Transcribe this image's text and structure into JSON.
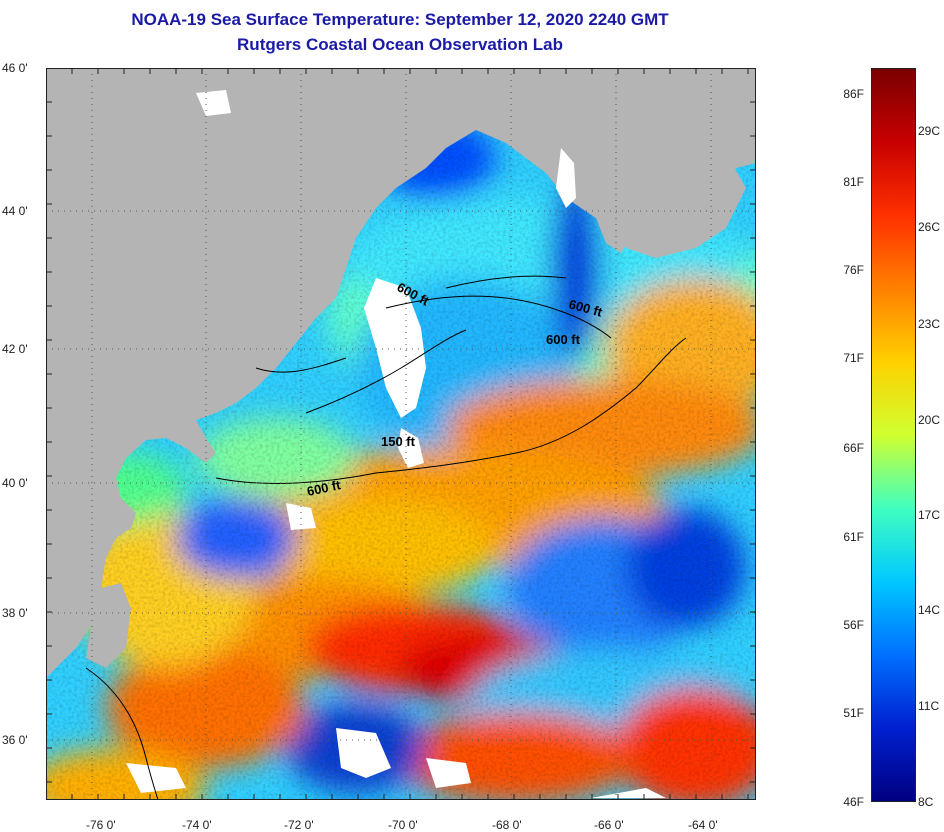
{
  "header": {
    "title_line1": "NOAA-19 Sea Surface Temperature:  September 12, 2020 2240 GMT",
    "title_line2": "Rutgers Coastal Ocean Observation Lab"
  },
  "map": {
    "land_color": "#b4b4b4",
    "lat_labels": [
      "46 0'",
      "44 0'",
      "42 0'",
      "40 0'",
      "38 0'",
      "36 0'"
    ],
    "lon_labels": [
      "-76 0'",
      "-74 0'",
      "-72 0'",
      "-70 0'",
      "-68 0'",
      "-66 0'",
      "-64 0'"
    ],
    "contour_labels": [
      {
        "text": "600 ft"
      },
      {
        "text": "600 ft"
      },
      {
        "text": "600 ft"
      },
      {
        "text": "150 ft"
      },
      {
        "text": "600 ft"
      }
    ]
  },
  "colorbar": {
    "fahrenheit_labels": [
      "86F",
      "81F",
      "76F",
      "71F",
      "66F",
      "61F",
      "56F",
      "51F",
      "46F"
    ],
    "celsius_labels": [
      "29C",
      "26C",
      "23C",
      "20C",
      "17C",
      "14C",
      "11C",
      "8C"
    ],
    "colors": [
      "#7a0000",
      "#c80000",
      "#ff3000",
      "#ff8000",
      "#ffd000",
      "#d0ff30",
      "#40ffc0",
      "#00c8ff",
      "#0070ff",
      "#0020d0",
      "#000080"
    ]
  }
}
